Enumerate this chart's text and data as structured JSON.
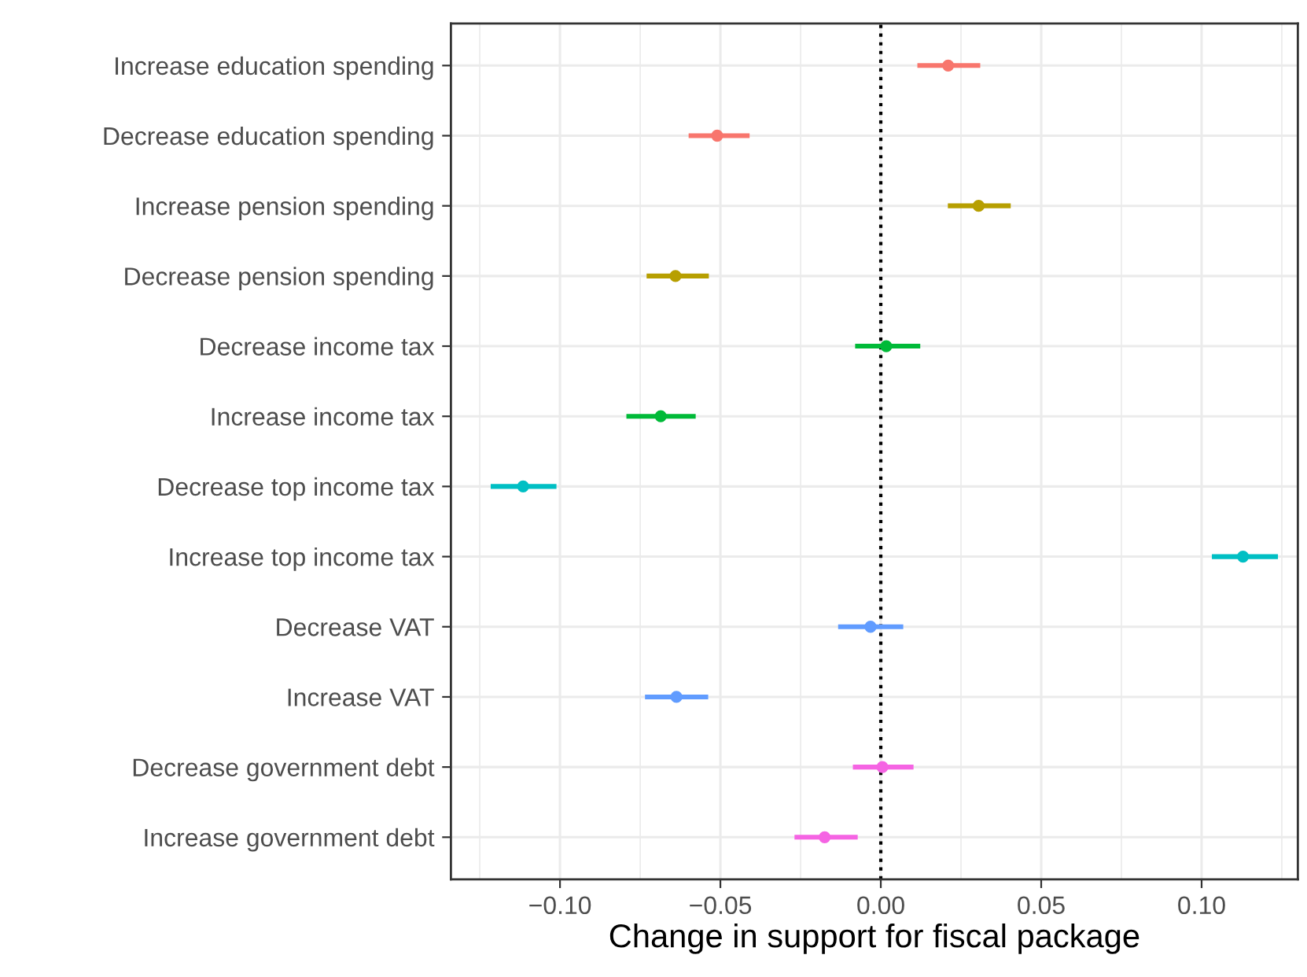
{
  "chart_data": {
    "type": "scatter",
    "orientation": "horizontal",
    "xlabel": "Change in support for fiscal package",
    "categories": [
      "Increase education spending",
      "Decrease education spending",
      "Increase pension spending",
      "Decrease pension spending",
      "Decrease income tax",
      "Increase income tax",
      "Decrease top income tax",
      "Increase top income tax",
      "Decrease VAT",
      "Increase VAT",
      "Decrease government debt",
      "Increase government debt"
    ],
    "values": [
      0.021,
      -0.051,
      0.0305,
      -0.064,
      0.0017,
      -0.0686,
      -0.1115,
      0.1129,
      -0.0032,
      -0.0637,
      0.0005,
      -0.0175
    ],
    "errors": [
      [
        0.0114,
        0.031
      ],
      [
        -0.0599,
        -0.0409
      ],
      [
        0.0209,
        0.0405
      ],
      [
        -0.073,
        -0.0536
      ],
      [
        -0.008,
        0.0123
      ],
      [
        -0.0793,
        -0.0577
      ],
      [
        -0.1216,
        -0.1011
      ],
      [
        0.1032,
        0.1238
      ],
      [
        -0.0133,
        0.007
      ],
      [
        -0.0735,
        -0.0538
      ],
      [
        -0.0087,
        0.0102
      ],
      [
        -0.0269,
        -0.0072
      ]
    ],
    "colors": [
      "#F8766D",
      "#F8766D",
      "#B79F00",
      "#B79F00",
      "#00BA38",
      "#00BA38",
      "#00BFC4",
      "#00BFC4",
      "#619CFF",
      "#619CFF",
      "#F564E3",
      "#F564E3"
    ],
    "xlim": [
      -0.134,
      0.13
    ],
    "xticks": [
      {
        "value": -0.1,
        "label": "−0.10"
      },
      {
        "value": -0.05,
        "label": "−0.05"
      },
      {
        "value": 0,
        "label": "0.00"
      },
      {
        "value": 0.05,
        "label": "0.05"
      },
      {
        "value": 0.1,
        "label": "0.10"
      }
    ],
    "ref_lines": [
      {
        "axis": "x",
        "value": 0,
        "color": "#000000",
        "line_style": "dotted"
      }
    ],
    "grid": true,
    "marker": "circle"
  }
}
